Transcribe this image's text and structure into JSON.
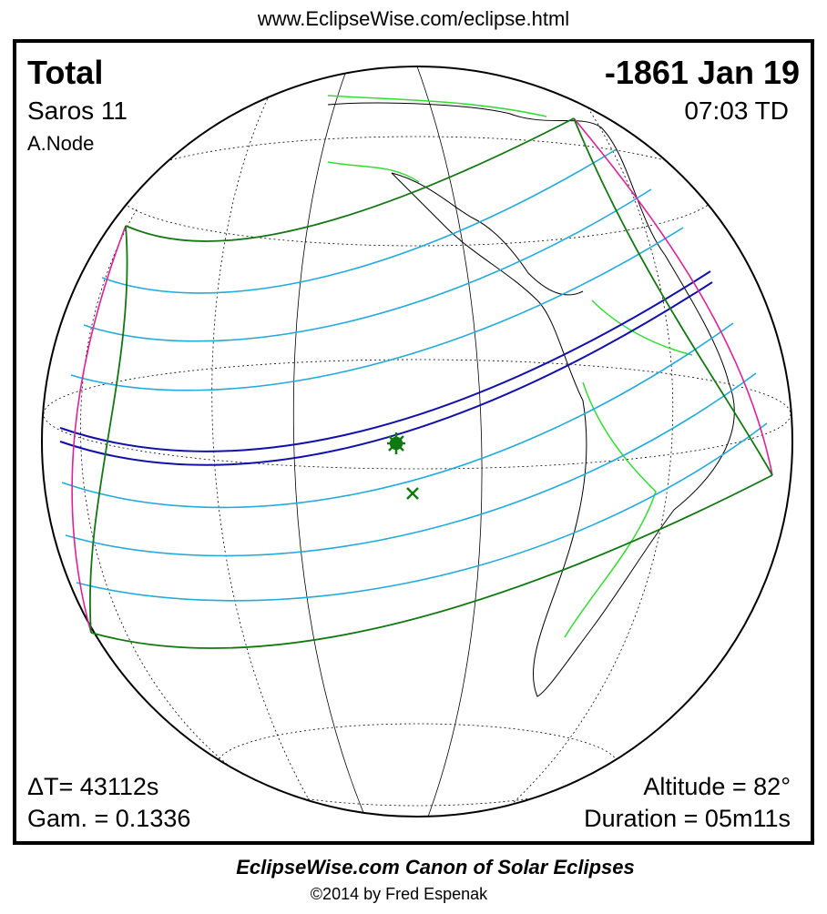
{
  "header": {
    "url": "www.EclipseWise.com/eclipse.html"
  },
  "eclipse": {
    "type": "Total",
    "saros": "Saros  11",
    "node": "A.Node",
    "date": "-1861 Jan 19",
    "time": "07:03 TD"
  },
  "parameters": {
    "delta_t": "ΔT=  43112s",
    "gamma": "Gam. = 0.1336",
    "altitude": "Altitude = 82°",
    "duration": "Duration = 05m11s"
  },
  "footer": {
    "title": "EclipseWise.com Canon of Solar Eclipses",
    "copyright": "©2014 by Fred Espenak"
  }
}
